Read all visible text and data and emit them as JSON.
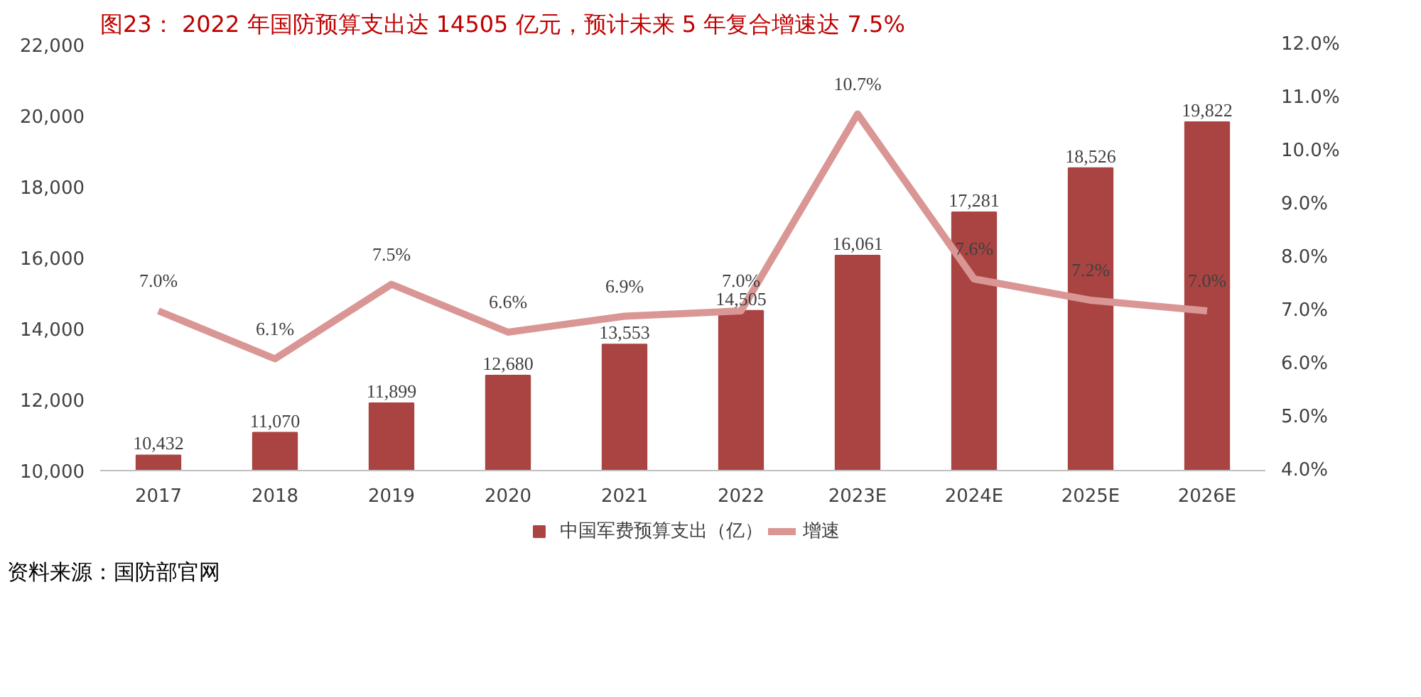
{
  "chart_data": {
    "type": "bar",
    "title": "图23： 2022 年国防预算支出达 14505 亿元，预计未来 5 年复合增速达 7.5%",
    "categories": [
      "2017",
      "2018",
      "2019",
      "2020",
      "2021",
      "2022",
      "2023E",
      "2024E",
      "2025E",
      "2026E"
    ],
    "series": [
      {
        "name": "中国军费预算支出（亿）",
        "color": "#a94442",
        "values": [
          10432,
          11070,
          11899,
          12680,
          13553,
          14505,
          16061,
          17281,
          18526,
          19822
        ],
        "value_labels": [
          "10,432",
          "11,070",
          "11,899",
          "12,680",
          "13,553",
          "14,505",
          "16,061",
          "17,281",
          "18,526",
          "19,822"
        ]
      },
      {
        "name": "增速",
        "type": "line",
        "axis": "y2",
        "color": "#d99694",
        "values": [
          7.0,
          6.1,
          7.5,
          6.6,
          6.9,
          7.0,
          10.7,
          7.6,
          7.2,
          7.0
        ],
        "value_labels": [
          "7.0%",
          "6.1%",
          "7.5%",
          "6.6%",
          "6.9%",
          "7.0%",
          "10.7%",
          "7.6%",
          "7.2%",
          "7.0%"
        ]
      }
    ],
    "ylim": [
      10000,
      22000
    ],
    "yticks": [
      {
        "value": 10000,
        "label": "10,000"
      },
      {
        "value": 12000,
        "label": "12,000"
      },
      {
        "value": 14000,
        "label": "14,000"
      },
      {
        "value": 16000,
        "label": "16,000"
      },
      {
        "value": 18000,
        "label": "18,000"
      },
      {
        "value": 20000,
        "label": "20,000"
      },
      {
        "value": 22000,
        "label": "22,000"
      }
    ],
    "y2lim": [
      4.0,
      12.0
    ],
    "y2ticks": [
      {
        "value": 4,
        "label": "4.0%"
      },
      {
        "value": 5,
        "label": "5.0%"
      },
      {
        "value": 6,
        "label": "6.0%"
      },
      {
        "value": 7,
        "label": "7.0%"
      },
      {
        "value": 8,
        "label": "8.0%"
      },
      {
        "value": 9,
        "label": "9.0%"
      },
      {
        "value": 10,
        "label": "10.0%"
      },
      {
        "value": 11,
        "label": "11.0%"
      },
      {
        "value": 12,
        "label": "12.0%"
      }
    ],
    "legend": "bottom",
    "grid": false,
    "annotations": [
      "资料来源：国防部官网"
    ]
  }
}
